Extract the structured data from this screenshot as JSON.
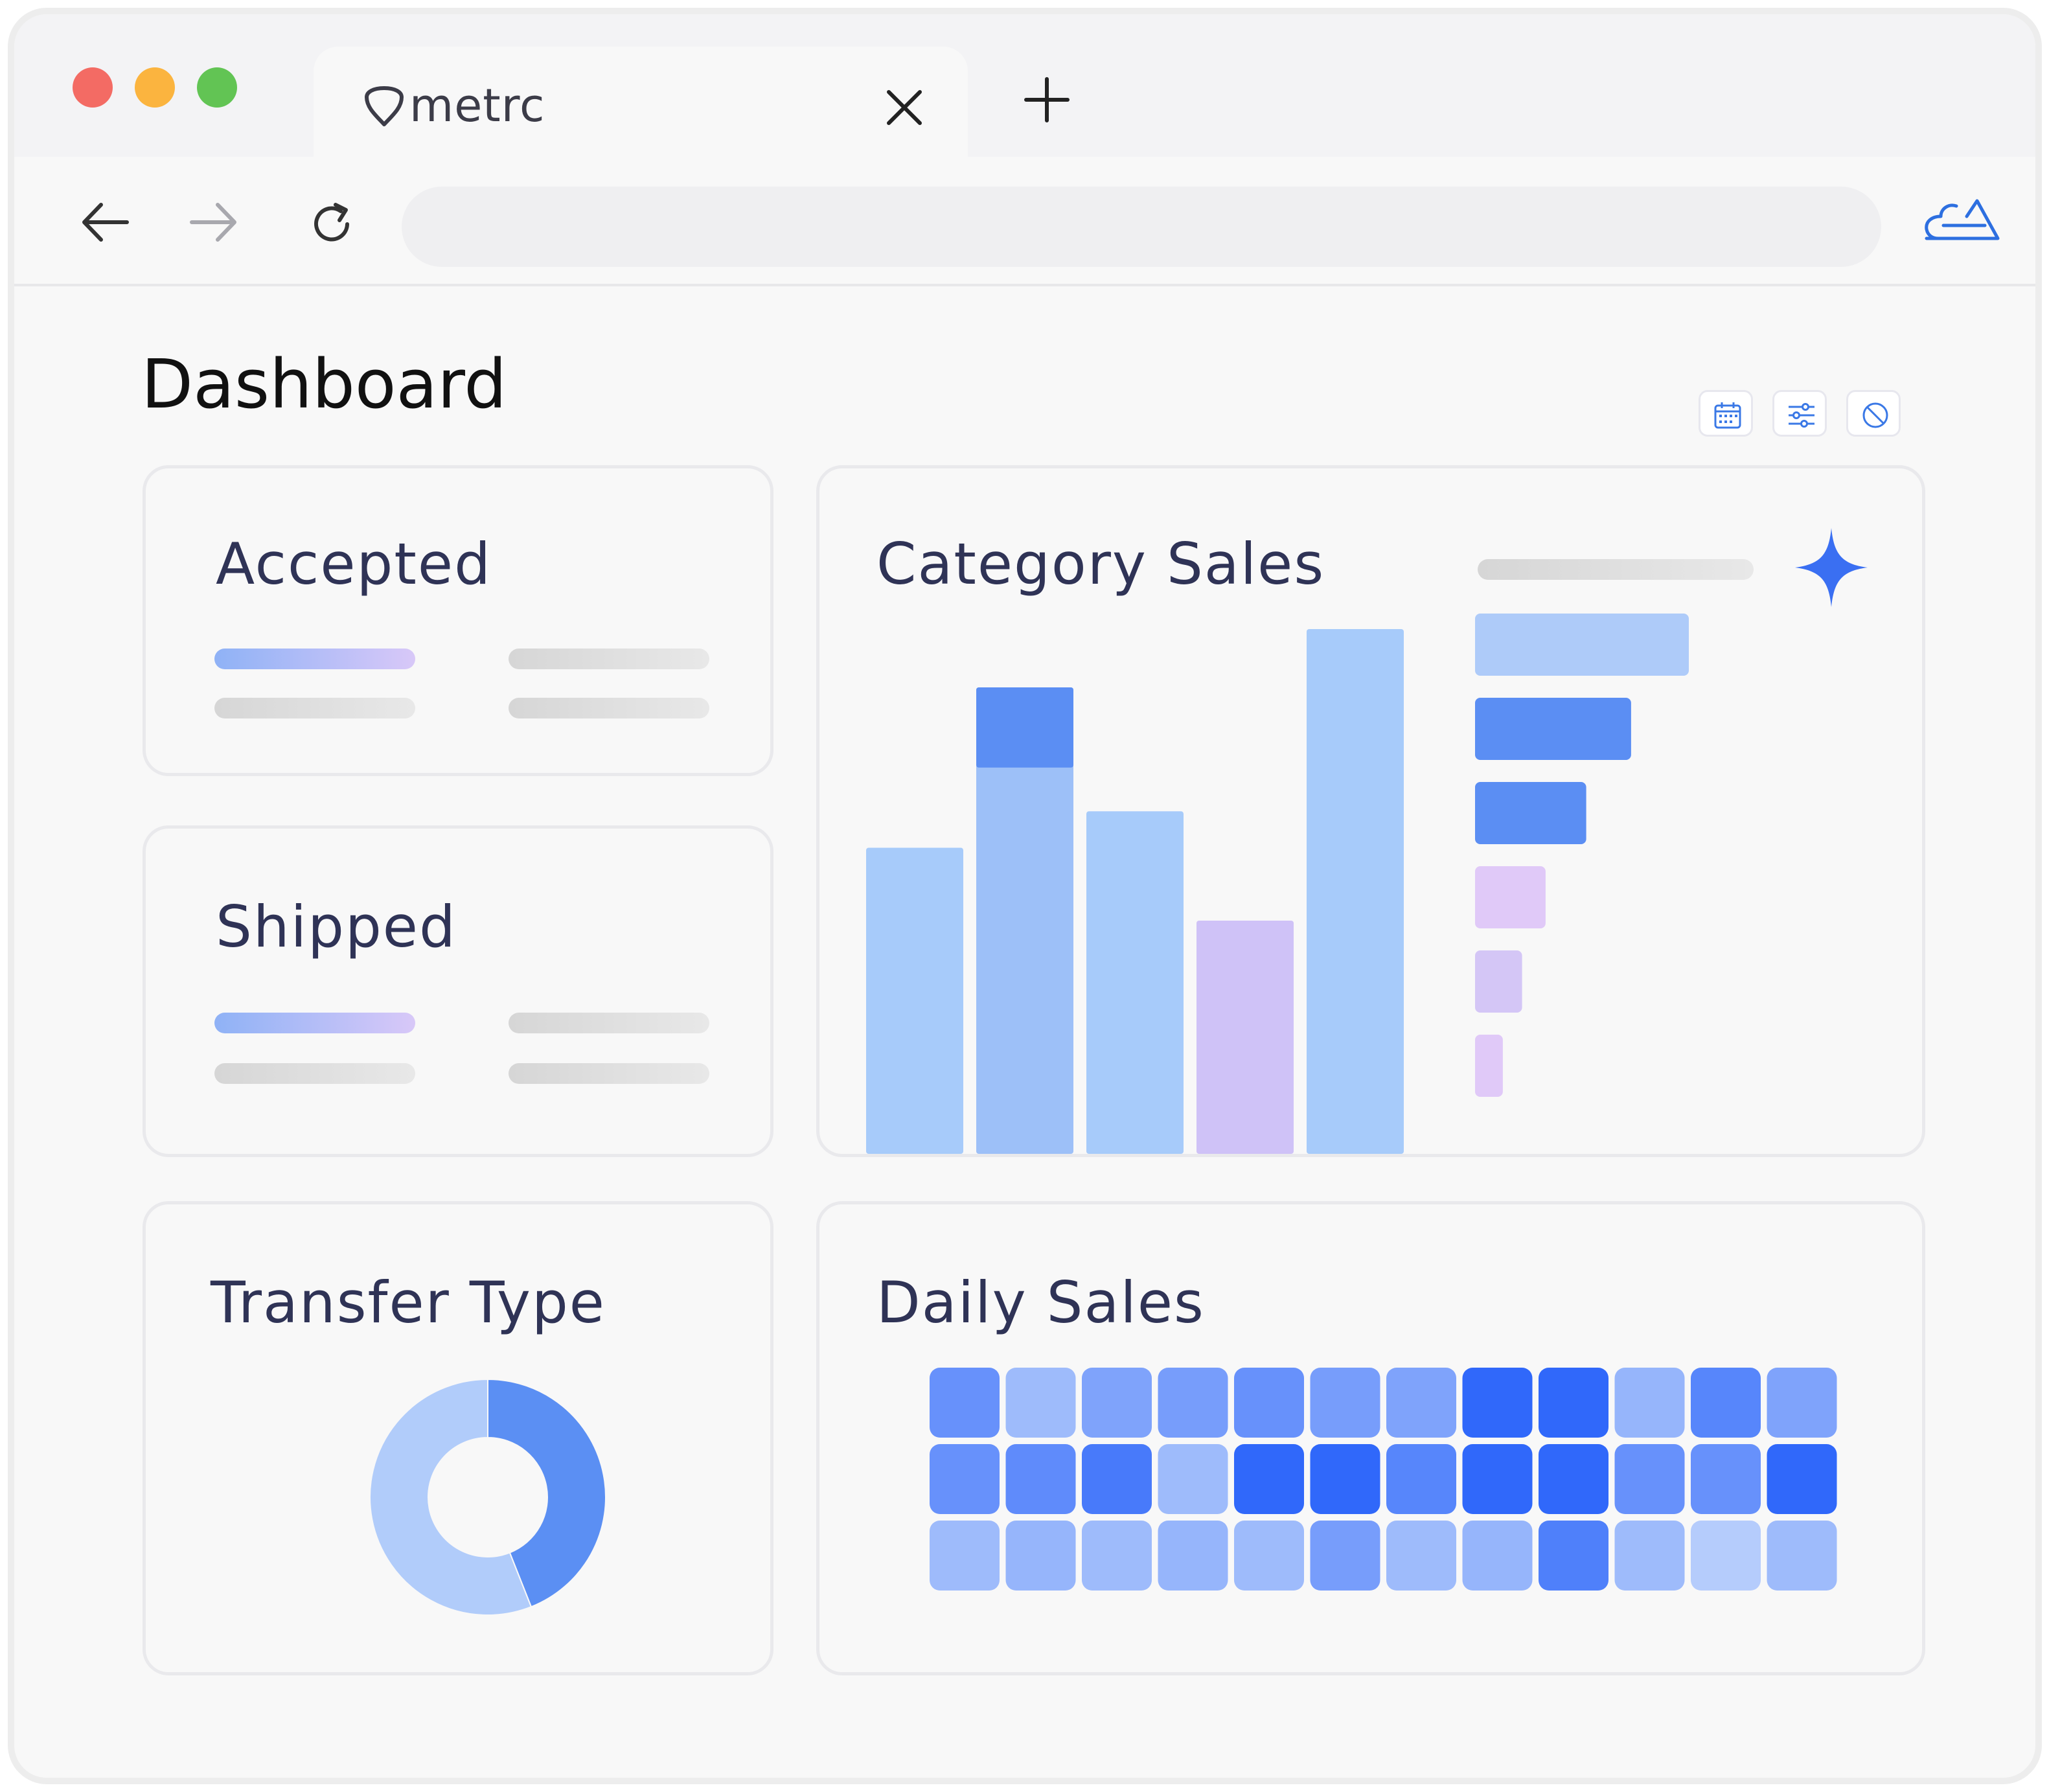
{
  "browser": {
    "tab_title": "metrc",
    "url": "",
    "traffic_lights": [
      "#f36b64",
      "#fbb43f",
      "#62c454"
    ]
  },
  "page": {
    "title": "Dashboard",
    "toolbar_icons": [
      "calendar-icon",
      "sliders-icon",
      "block-icon"
    ]
  },
  "cards": {
    "accepted": {
      "title": "Accepted"
    },
    "shipped": {
      "title": "Shipped"
    },
    "category_sales": {
      "title": "Category Sales"
    },
    "transfer_type": {
      "title": "Transfer Type"
    },
    "daily_sales": {
      "title": "Daily Sales"
    }
  },
  "colors": {
    "accent_blue": "#3a6ff2",
    "light_blue": "#a7cbfa",
    "purple": "#cfc2f7",
    "text_title": "#2f3356"
  },
  "chart_data": [
    {
      "type": "bar",
      "name": "category-sales-columns",
      "values": [
        42,
        64,
        47,
        32,
        72
      ],
      "highlight_top": [
        0,
        11,
        0,
        0,
        0
      ],
      "colors": [
        "#a7cbfa",
        "#9dc0f8",
        "#a7cbfa",
        "#cfc2f7",
        "#a7cbfa"
      ],
      "ylim": [
        0,
        80
      ]
    },
    {
      "type": "bar",
      "name": "category-sales-horizontal",
      "values": [
        100,
        73,
        52,
        33,
        22,
        13
      ],
      "colors": [
        "#aecbf9",
        "#5b8ef3",
        "#5b8ef3",
        "#e0c9f8",
        "#d4c6f6",
        "#e0c9f8"
      ],
      "xlim": [
        0,
        100
      ]
    },
    {
      "type": "pie",
      "name": "transfer-type-donut",
      "values": [
        44,
        56
      ],
      "colors": [
        "#5b8ff3",
        "#b1ccfa"
      ]
    },
    {
      "type": "heatmap",
      "name": "daily-sales-heatmap",
      "rows": 3,
      "cols": 12,
      "values": [
        [
          0.65,
          0.3,
          0.5,
          0.55,
          0.65,
          0.55,
          0.5,
          1.0,
          1.0,
          0.35,
          0.75,
          0.5
        ],
        [
          0.65,
          0.7,
          0.85,
          0.3,
          1.0,
          1.0,
          0.75,
          1.0,
          1.0,
          0.65,
          0.65,
          1.0
        ],
        [
          0.3,
          0.35,
          0.3,
          0.35,
          0.3,
          0.55,
          0.3,
          0.35,
          0.8,
          0.3,
          0.15,
          0.3
        ]
      ]
    }
  ]
}
